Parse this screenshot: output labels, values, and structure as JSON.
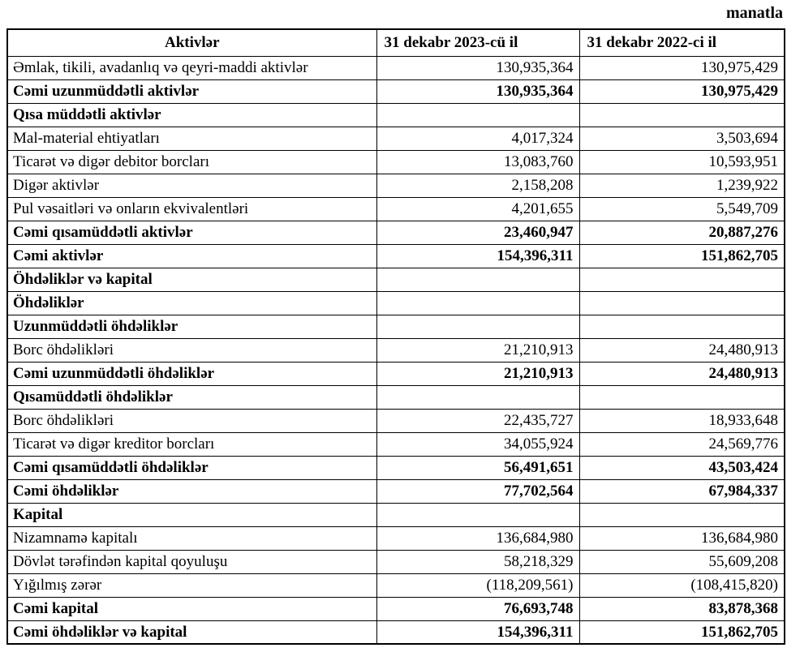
{
  "page": {
    "unit_label": "manatla"
  },
  "table": {
    "columns": [
      {
        "label": "Aktivlər"
      },
      {
        "label": "31 dekabr 2023-cü il"
      },
      {
        "label": "31 dekabr 2022-ci il"
      }
    ],
    "rows": [
      {
        "label": "Əmlak, tikili, avadanlıq və qeyri-maddi aktivlər",
        "v2023": "130,935,364",
        "v2022": "130,975,429",
        "style": "item"
      },
      {
        "label": "Cəmi uzunmüddətli aktivlər",
        "v2023": "130,935,364",
        "v2022": "130,975,429",
        "style": "total"
      },
      {
        "label": "Qısa müddətli aktivlər",
        "v2023": "",
        "v2022": "",
        "style": "section"
      },
      {
        "label": "Mal-material ehtiyatları",
        "v2023": "4,017,324",
        "v2022": "3,503,694",
        "style": "item"
      },
      {
        "label": "Ticarət və digər debitor borcları",
        "v2023": "13,083,760",
        "v2022": "10,593,951",
        "style": "item"
      },
      {
        "label": "Digər aktivlər",
        "v2023": "2,158,208",
        "v2022": "1,239,922",
        "style": "item"
      },
      {
        "label": "Pul vəsaitləri və onların ekvivalentləri",
        "v2023": "4,201,655",
        "v2022": "5,549,709",
        "style": "item"
      },
      {
        "label": "Cəmi qısamüddətli aktivlər",
        "v2023": "23,460,947",
        "v2022": "20,887,276",
        "style": "total"
      },
      {
        "label": "Cəmi aktivlər",
        "v2023": "154,396,311",
        "v2022": "151,862,705",
        "style": "total"
      },
      {
        "label": "Öhdəliklər və kapital",
        "v2023": "",
        "v2022": "",
        "style": "section"
      },
      {
        "label": "Öhdəliklər",
        "v2023": "",
        "v2022": "",
        "style": "section"
      },
      {
        "label": "Uzunmüddətli öhdəliklər",
        "v2023": "",
        "v2022": "",
        "style": "section"
      },
      {
        "label": "Borc öhdəlikləri",
        "v2023": "21,210,913",
        "v2022": "24,480,913",
        "style": "item"
      },
      {
        "label": "Cəmi uzunmüddətli öhdəliklər",
        "v2023": "21,210,913",
        "v2022": "24,480,913",
        "style": "total"
      },
      {
        "label": "Qısamüddətli öhdəliklər",
        "v2023": "",
        "v2022": "",
        "style": "section"
      },
      {
        "label": "Borc öhdəlikləri",
        "v2023": "22,435,727",
        "v2022": "18,933,648",
        "style": "item"
      },
      {
        "label": "Ticarət və digər kreditor borcları",
        "v2023": "34,055,924",
        "v2022": "24,569,776",
        "style": "item"
      },
      {
        "label": "Cəmi qısamüddətli öhdəliklər",
        "v2023": "56,491,651",
        "v2022": "43,503,424",
        "style": "total"
      },
      {
        "label": "Cəmi öhdəliklər",
        "v2023": "77,702,564",
        "v2022": "67,984,337",
        "style": "total"
      },
      {
        "label": "Kapital",
        "v2023": "",
        "v2022": "",
        "style": "section"
      },
      {
        "label": "Nizamnamə kapitalı",
        "v2023": "136,684,980",
        "v2022": "136,684,980",
        "style": "item"
      },
      {
        "label": "Dövlət tərəfindən kapital qoyuluşu",
        "v2023": "58,218,329",
        "v2022": "55,609,208",
        "style": "item"
      },
      {
        "label": "Yığılmış zərər",
        "v2023": "(118,209,561)",
        "v2022": "(108,415,820)",
        "style": "item"
      },
      {
        "label": "Cəmi kapital",
        "v2023": "76,693,748",
        "v2022": "83,878,368",
        "style": "total"
      },
      {
        "label": "Cəmi öhdəliklər və kapital",
        "v2023": "154,396,311",
        "v2022": "151,862,705",
        "style": "total"
      }
    ]
  }
}
